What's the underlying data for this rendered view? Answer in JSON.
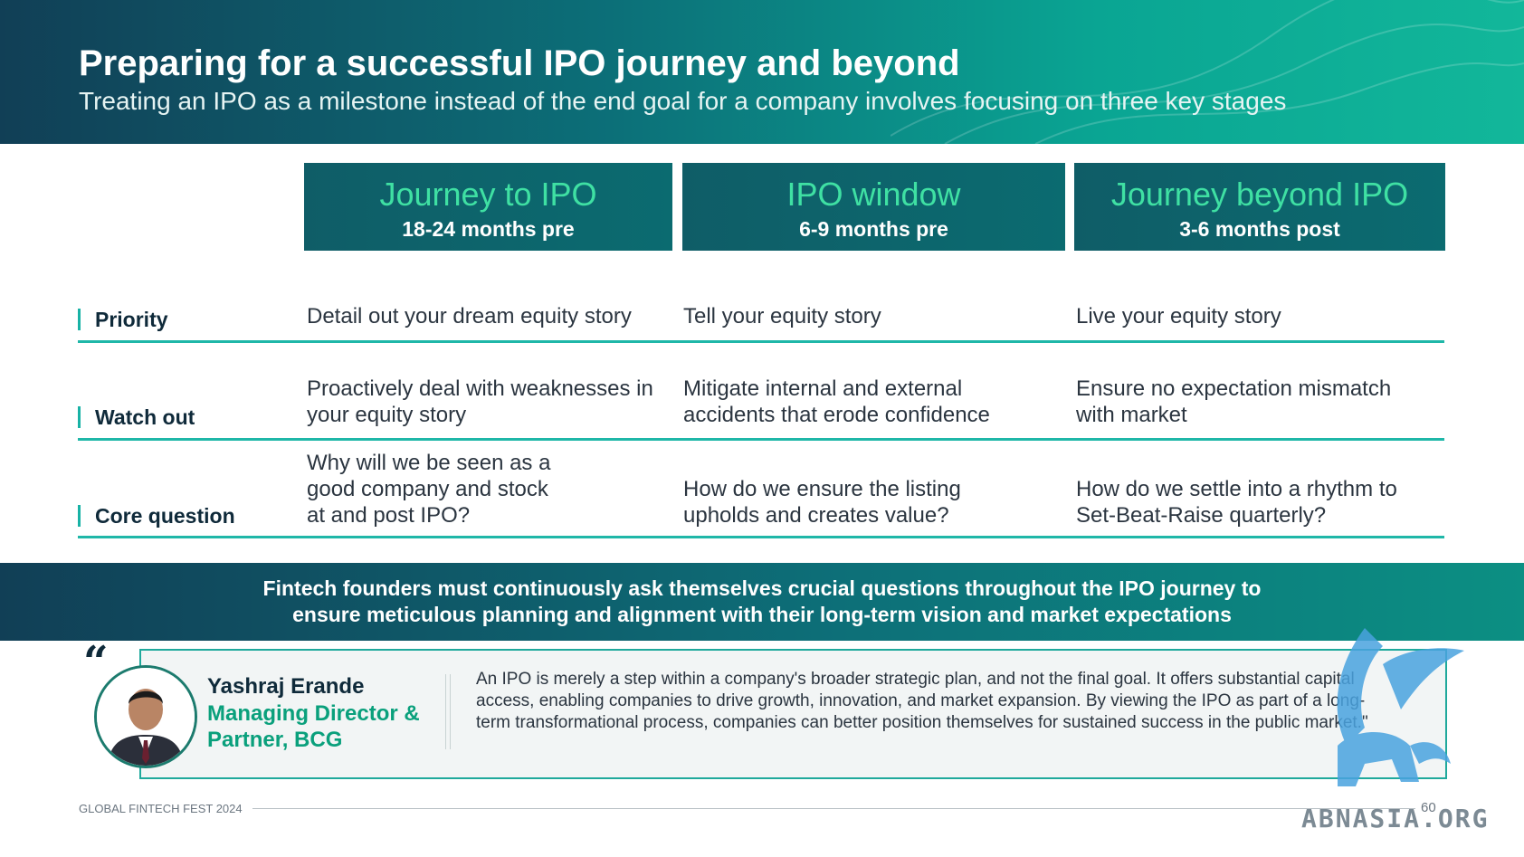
{
  "header": {
    "title": "Preparing for a successful IPO journey and beyond",
    "subtitle": "Treating an IPO as a milestone instead of the end goal for a company involves focusing on three key stages"
  },
  "stages": [
    {
      "name": "Journey to IPO",
      "period": "18-24 months pre"
    },
    {
      "name": "IPO window",
      "period": "6-9 months pre"
    },
    {
      "name": "Journey beyond IPO",
      "period": "3-6 months post"
    }
  ],
  "rows": [
    {
      "label": "Priority",
      "cells": [
        [
          "Detail out your dream equity story"
        ],
        [
          "Tell your equity story"
        ],
        [
          "Live your equity story"
        ]
      ]
    },
    {
      "label": "Watch out",
      "cells": [
        [
          "Proactively deal with weaknesses in",
          "your equity story"
        ],
        [
          "Mitigate internal and external",
          "accidents that erode confidence"
        ],
        [
          "Ensure no expectation mismatch",
          "with market"
        ]
      ]
    },
    {
      "label": "Core question",
      "cells": [
        [
          "Why will we be seen as a",
          "good company and stock",
          "at and post IPO?"
        ],
        [
          "How do we ensure the listing",
          "upholds and creates value?"
        ],
        [
          "How do we settle into a rhythm to",
          "Set-Beat-Raise quarterly?"
        ]
      ]
    }
  ],
  "banner": {
    "line1": "Fintech founders must continuously ask themselves crucial questions throughout the IPO journey to",
    "line2": "ensure meticulous planning and alignment with their long-term vision and market expectations"
  },
  "quote": {
    "mark": "“",
    "name": "Yashraj Erande",
    "role_line1": "Managing Director &",
    "role_line2": "Partner, BCG",
    "text": "An IPO is merely a step within a company's broader strategic plan, and not the final goal. It offers substantial capital access, enabling companies to drive growth, innovation, and market expansion. By viewing the IPO as part of a long-term transformational process, companies can better position themselves for sustained success in the public market.\""
  },
  "footer": {
    "event": "GLOBAL FINTECH FEST 2024",
    "page": "60"
  },
  "watermark": {
    "text": "ABNASIA.ORG"
  },
  "colors": {
    "accent": "#1fb7a8",
    "stage_title": "#3fe0a3",
    "dark": "#113f56"
  }
}
